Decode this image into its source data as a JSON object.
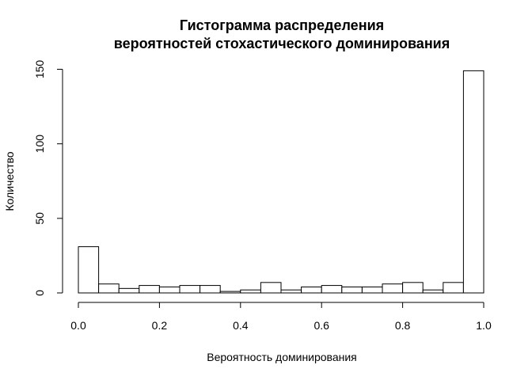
{
  "chart_data": {
    "type": "bar",
    "title_lines": [
      "Гистограмма распределения",
      "вероятностей стохастического доминирования"
    ],
    "xlabel": "Вероятность доминирования",
    "ylabel": "Количество",
    "xlim": [
      0.0,
      1.0
    ],
    "ylim": [
      0,
      150
    ],
    "x_ticks": [
      "0.0",
      "0.2",
      "0.4",
      "0.6",
      "0.8",
      "1.0"
    ],
    "y_ticks": [
      "0",
      "50",
      "100",
      "150"
    ],
    "bin_width": 0.05,
    "bin_starts": [
      0.0,
      0.05,
      0.1,
      0.15,
      0.2,
      0.25,
      0.3,
      0.35,
      0.4,
      0.45,
      0.5,
      0.55,
      0.6,
      0.65,
      0.7,
      0.75,
      0.8,
      0.85,
      0.9,
      0.95
    ],
    "values": [
      31,
      6,
      3,
      5,
      4,
      5,
      5,
      1,
      2,
      7,
      2,
      4,
      5,
      4,
      4,
      6,
      7,
      2,
      7,
      149
    ],
    "grid": false,
    "bar_fill": "#ffffff",
    "bar_stroke": "#000000"
  }
}
